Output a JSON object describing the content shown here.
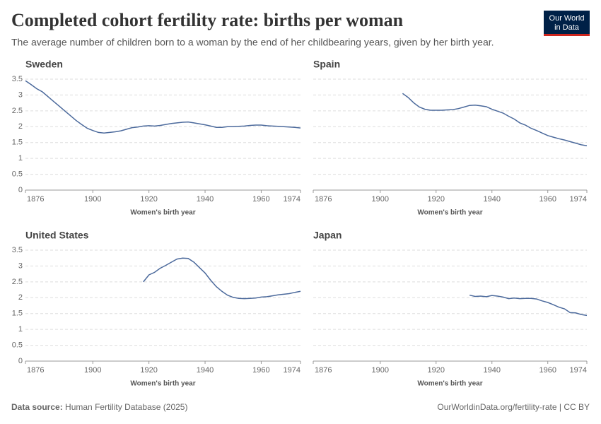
{
  "header": {
    "title": "Completed cohort fertility rate: births per woman",
    "subtitle": "The average number of children born to a woman by the end of her childbearing years, given by her birth year.",
    "logo": [
      "Our World",
      "in Data"
    ]
  },
  "footer": {
    "source_label": "Data source:",
    "source": "Human Fertility Database (2025)",
    "url": "OurWorldinData.org/fertility-rate | CC BY"
  },
  "chart_data": [
    {
      "type": "line",
      "title": "Sweden",
      "xlabel": "Women's birth year",
      "color": "#4c6a9c",
      "xlim": [
        1876,
        1974
      ],
      "xticks": [
        1876,
        1900,
        1920,
        1940,
        1960,
        1974
      ],
      "ylim": [
        0,
        3.5
      ],
      "yticks": [
        0,
        0.5,
        1,
        1.5,
        2,
        2.5,
        3,
        3.5
      ],
      "grid": true,
      "x": [
        1876,
        1878,
        1880,
        1882,
        1884,
        1886,
        1888,
        1890,
        1892,
        1894,
        1896,
        1898,
        1900,
        1902,
        1904,
        1906,
        1908,
        1910,
        1912,
        1914,
        1916,
        1918,
        1920,
        1922,
        1924,
        1926,
        1928,
        1930,
        1932,
        1934,
        1936,
        1938,
        1940,
        1942,
        1944,
        1946,
        1948,
        1950,
        1952,
        1954,
        1956,
        1958,
        1960,
        1962,
        1964,
        1966,
        1968,
        1970,
        1972,
        1974
      ],
      "values": [
        3.45,
        3.33,
        3.2,
        3.1,
        2.95,
        2.8,
        2.65,
        2.5,
        2.35,
        2.2,
        2.07,
        1.95,
        1.88,
        1.82,
        1.8,
        1.82,
        1.84,
        1.87,
        1.92,
        1.97,
        1.99,
        2.02,
        2.03,
        2.02,
        2.04,
        2.07,
        2.1,
        2.12,
        2.14,
        2.15,
        2.12,
        2.09,
        2.06,
        2.02,
        1.98,
        1.98,
        2.0,
        2.0,
        2.01,
        2.02,
        2.04,
        2.05,
        2.05,
        2.03,
        2.02,
        2.01,
        2.0,
        1.99,
        1.98,
        1.96
      ]
    },
    {
      "type": "line",
      "title": "Spain",
      "xlabel": "Women's birth year",
      "color": "#4c6a9c",
      "xlim": [
        1876,
        1974
      ],
      "xticks": [
        1876,
        1900,
        1920,
        1940,
        1960,
        1974
      ],
      "ylim": [
        0,
        3.5
      ],
      "yticks": [
        0,
        0.5,
        1,
        1.5,
        2,
        2.5,
        3,
        3.5
      ],
      "grid": true,
      "x": [
        1908,
        1910,
        1912,
        1914,
        1916,
        1918,
        1920,
        1922,
        1924,
        1926,
        1928,
        1930,
        1932,
        1934,
        1936,
        1938,
        1940,
        1942,
        1944,
        1946,
        1948,
        1950,
        1952,
        1954,
        1956,
        1958,
        1960,
        1962,
        1964,
        1966,
        1968,
        1970,
        1972,
        1974
      ],
      "values": [
        3.05,
        2.92,
        2.75,
        2.62,
        2.55,
        2.52,
        2.52,
        2.52,
        2.53,
        2.54,
        2.57,
        2.62,
        2.67,
        2.68,
        2.66,
        2.63,
        2.55,
        2.49,
        2.43,
        2.33,
        2.24,
        2.12,
        2.05,
        1.95,
        1.88,
        1.8,
        1.72,
        1.67,
        1.62,
        1.58,
        1.53,
        1.48,
        1.43,
        1.4
      ]
    },
    {
      "type": "line",
      "title": "United States",
      "xlabel": "Women's birth year",
      "color": "#4c6a9c",
      "xlim": [
        1876,
        1974
      ],
      "xticks": [
        1876,
        1900,
        1920,
        1940,
        1960,
        1974
      ],
      "ylim": [
        0,
        3.5
      ],
      "yticks": [
        0,
        0.5,
        1,
        1.5,
        2,
        2.5,
        3,
        3.5
      ],
      "grid": true,
      "x": [
        1918,
        1920,
        1922,
        1924,
        1926,
        1928,
        1930,
        1932,
        1934,
        1936,
        1938,
        1940,
        1942,
        1944,
        1946,
        1948,
        1950,
        1952,
        1954,
        1956,
        1958,
        1960,
        1962,
        1964,
        1966,
        1968,
        1970,
        1972,
        1974
      ],
      "values": [
        2.5,
        2.72,
        2.8,
        2.93,
        3.02,
        3.12,
        3.22,
        3.25,
        3.24,
        3.12,
        2.95,
        2.78,
        2.55,
        2.35,
        2.2,
        2.08,
        2.01,
        1.98,
        1.97,
        1.98,
        1.99,
        2.02,
        2.03,
        2.06,
        2.09,
        2.11,
        2.13,
        2.17,
        2.2
      ]
    },
    {
      "type": "line",
      "title": "Japan",
      "xlabel": "Women's birth year",
      "color": "#4c6a9c",
      "xlim": [
        1876,
        1974
      ],
      "xticks": [
        1876,
        1900,
        1920,
        1940,
        1960,
        1974
      ],
      "ylim": [
        0,
        3.5
      ],
      "yticks": [
        0,
        0.5,
        1,
        1.5,
        2,
        2.5,
        3,
        3.5
      ],
      "grid": true,
      "x": [
        1932,
        1934,
        1936,
        1938,
        1940,
        1942,
        1944,
        1946,
        1948,
        1950,
        1952,
        1954,
        1956,
        1958,
        1960,
        1962,
        1964,
        1966,
        1968,
        1970,
        1972,
        1974
      ],
      "values": [
        2.08,
        2.04,
        2.05,
        2.03,
        2.07,
        2.05,
        2.02,
        1.97,
        1.99,
        1.97,
        1.98,
        1.98,
        1.96,
        1.9,
        1.85,
        1.78,
        1.7,
        1.65,
        1.53,
        1.52,
        1.47,
        1.44
      ]
    }
  ]
}
